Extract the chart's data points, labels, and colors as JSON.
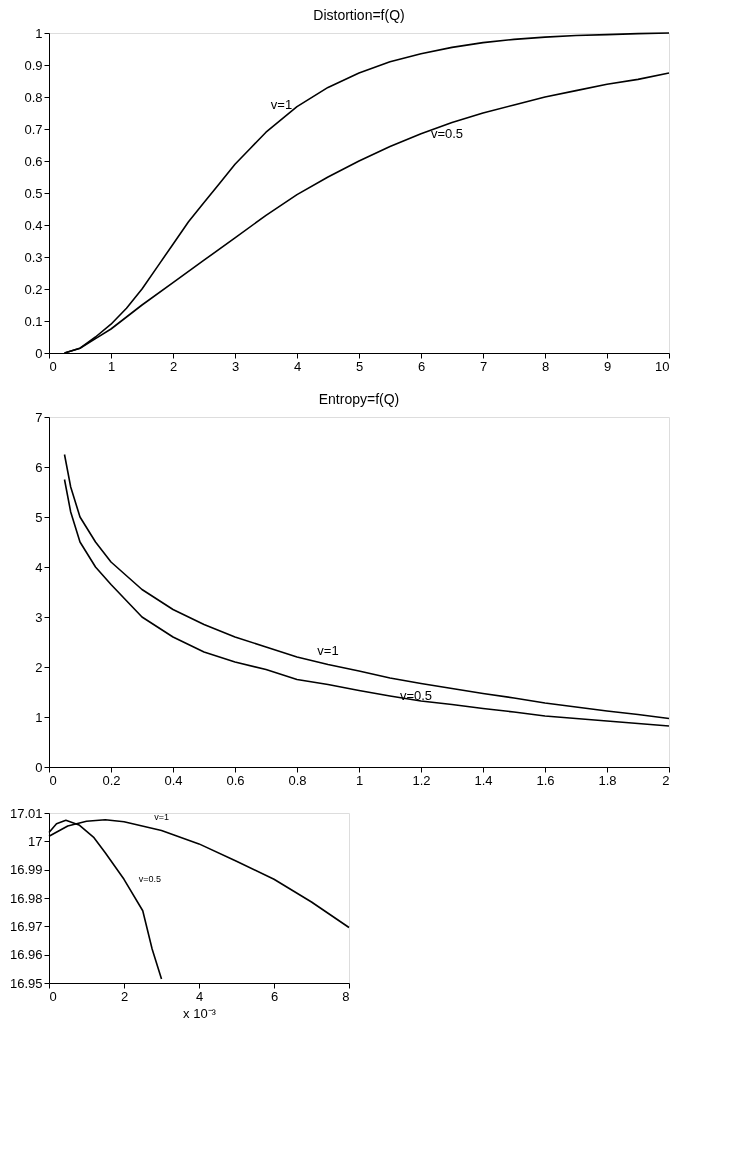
{
  "chart_data": [
    {
      "type": "line",
      "title": "Distortion=f(Q)",
      "xlim": [
        0,
        10
      ],
      "ylim": [
        0,
        1
      ],
      "xticks": [
        0,
        1,
        2,
        3,
        4,
        5,
        6,
        7,
        8,
        9,
        10
      ],
      "yticks": [
        0,
        0.1,
        0.2,
        0.3,
        0.4,
        0.5,
        0.6,
        0.7,
        0.8,
        0.9,
        1
      ],
      "grid": false,
      "marker": "none",
      "line_style": "solid",
      "series": [
        {
          "name": "v=1",
          "color": "#000000",
          "x": [
            0.25,
            0.5,
            0.75,
            1,
            1.25,
            1.5,
            1.75,
            2,
            2.25,
            2.5,
            2.75,
            3,
            3.25,
            3.5,
            3.75,
            4,
            4.5,
            5,
            5.5,
            6,
            6.5,
            7,
            7.5,
            8,
            8.5,
            9,
            9.5,
            10
          ],
          "values": [
            0,
            0.015,
            0.05,
            0.09,
            0.14,
            0.2,
            0.27,
            0.34,
            0.41,
            0.47,
            0.53,
            0.59,
            0.64,
            0.69,
            0.73,
            0.77,
            0.83,
            0.875,
            0.91,
            0.935,
            0.955,
            0.97,
            0.98,
            0.987,
            0.992,
            0.995,
            0.998,
            1.0
          ]
        },
        {
          "name": "v=0.5",
          "color": "#000000",
          "x": [
            0.25,
            0.5,
            0.75,
            1,
            1.5,
            2,
            2.5,
            3,
            3.5,
            4,
            4.5,
            5,
            5.5,
            6,
            6.5,
            7,
            7.5,
            8,
            8.5,
            9,
            9.5,
            10
          ],
          "values": [
            0,
            0.015,
            0.045,
            0.075,
            0.15,
            0.22,
            0.29,
            0.36,
            0.43,
            0.495,
            0.55,
            0.6,
            0.645,
            0.685,
            0.72,
            0.75,
            0.775,
            0.8,
            0.82,
            0.84,
            0.855,
            0.875
          ]
        }
      ]
    },
    {
      "type": "line",
      "title": "Entropy=f(Q)",
      "xlim": [
        0,
        2
      ],
      "ylim": [
        0,
        7
      ],
      "xticks": [
        0,
        0.2,
        0.4,
        0.6,
        0.8,
        1,
        1.2,
        1.4,
        1.6,
        1.8,
        2
      ],
      "yticks": [
        0,
        1,
        2,
        3,
        4,
        5,
        6,
        7
      ],
      "grid": false,
      "marker": "none",
      "line_style": "solid",
      "series": [
        {
          "name": "v=1",
          "color": "#000000",
          "x": [
            0.05,
            0.07,
            0.1,
            0.15,
            0.2,
            0.3,
            0.4,
            0.5,
            0.6,
            0.7,
            0.8,
            0.9,
            1.0,
            1.1,
            1.2,
            1.3,
            1.4,
            1.5,
            1.6,
            1.7,
            1.8,
            1.9,
            2.0
          ],
          "values": [
            6.25,
            5.6,
            5.0,
            4.5,
            4.1,
            3.55,
            3.15,
            2.85,
            2.6,
            2.4,
            2.2,
            2.05,
            1.92,
            1.78,
            1.67,
            1.57,
            1.47,
            1.38,
            1.28,
            1.2,
            1.12,
            1.05,
            0.97
          ]
        },
        {
          "name": "v=0.5",
          "color": "#000000",
          "x": [
            0.05,
            0.07,
            0.1,
            0.15,
            0.2,
            0.3,
            0.4,
            0.5,
            0.6,
            0.7,
            0.8,
            0.9,
            1.0,
            1.1,
            1.2,
            1.3,
            1.4,
            1.5,
            1.6,
            1.7,
            1.8,
            1.9,
            2.0
          ],
          "values": [
            5.75,
            5.1,
            4.5,
            4.0,
            3.65,
            3.0,
            2.6,
            2.3,
            2.1,
            1.95,
            1.75,
            1.65,
            1.53,
            1.42,
            1.32,
            1.25,
            1.17,
            1.1,
            1.02,
            0.97,
            0.92,
            0.87,
            0.82
          ]
        }
      ]
    },
    {
      "type": "line",
      "xlabel": "x 10⁻³",
      "xlim": [
        0,
        8
      ],
      "ylim": [
        16.95,
        17.01
      ],
      "xticks": [
        0,
        2,
        4,
        6,
        8
      ],
      "yticks": [
        16.95,
        16.96,
        16.97,
        16.98,
        16.99,
        17,
        17.01
      ],
      "grid": false,
      "marker": "none",
      "line_style": "solid",
      "series": [
        {
          "name": "v=1",
          "color": "#000000",
          "x": [
            0,
            0.5,
            1,
            1.5,
            2,
            3,
            4,
            5,
            6,
            7,
            8
          ],
          "values": [
            17.0018,
            17.0054,
            17.0071,
            17.0076,
            17.0069,
            17.0038,
            16.9991,
            16.993,
            16.9866,
            16.9786,
            16.9696
          ]
        },
        {
          "name": "v=0.5",
          "color": "#000000",
          "x": [
            0,
            0.2,
            0.45,
            0.8,
            1.2,
            1.5,
            2,
            2.5,
            2.75,
            3
          ],
          "values": [
            17.0031,
            17.0062,
            17.0074,
            17.0058,
            17.0013,
            16.996,
            16.9866,
            16.9755,
            16.962,
            16.9514
          ]
        }
      ]
    }
  ]
}
